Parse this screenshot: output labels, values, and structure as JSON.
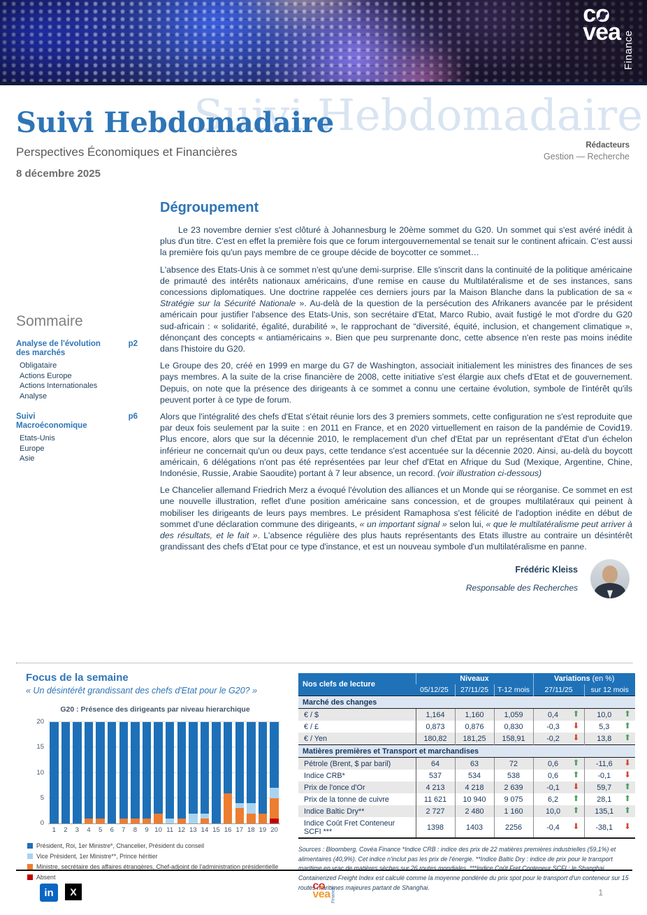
{
  "banner": {
    "logo": {
      "l1_pre": "c",
      "l1_o": "o",
      "l2": "vea",
      "vertical": "Finance"
    }
  },
  "masthead": {
    "watermark": "Suivi Hebdomadaire",
    "title": "Suivi Hebdomadaire",
    "subtitle": "Perspectives Économiques et Financières",
    "date": "8 décembre 2025",
    "editors_label": "Rédacteurs",
    "editors_value": "Gestion — Recherche"
  },
  "sommaire": {
    "title": "Sommaire",
    "sections": [
      {
        "label": "Analyse de l'évolution des marchés",
        "page": "p2",
        "items": [
          "Obligataire",
          "Actions Europe",
          "Actions Internationales",
          "Analyse"
        ]
      },
      {
        "label": "Suivi Macroéconomique",
        "page": "p6",
        "items": [
          "Etats-Unis",
          "Europe",
          "Asie"
        ]
      }
    ]
  },
  "article": {
    "title": "Dégroupement",
    "paragraphs": [
      [
        {
          "t": "Le 23 novembre dernier s'est clôturé à Johannesburg le 20ème sommet du G20. Un sommet qui s'est avéré inédit à plus d'un titre. C'est en effet la première fois que ce forum intergouvernemental se tenait sur le continent africain. C'est aussi la première fois qu'un pays membre de ce groupe décide de boycotter ce sommet…"
        }
      ],
      [
        {
          "t": "L'absence des Etats-Unis à ce sommet n'est qu'une demi-surprise. Elle s'inscrit dans la continuité de la politique américaine de primauté des intérêts nationaux américains, d'une remise en cause du Multilatéralisme et de ses instances, sans concessions diplomatiques. Une doctrine rappelée ces derniers jours par la Maison Blanche dans la publication de sa « "
        },
        {
          "t": "Stratégie sur la Sécurité Nationale",
          "i": true
        },
        {
          "t": " ». Au-delà de la question de la persécution des Afrikaners avancée par le président américain pour justifier l'absence des Etats-Unis, son secrétaire d'Etat, Marco Rubio, avait fustigé le mot d'ordre du G20 sud-africain : « solidarité, égalité, durabilité », le rapprochant de “diversité, équité, inclusion, et changement climatique », dénonçant des concepts « antiaméricains ». Bien que peu surprenante donc, cette absence n'en reste pas moins inédite dans l'histoire du G20."
        }
      ],
      [
        {
          "t": "Le Groupe des 20, créé en 1999 en marge du G7 de Washington, associait initialement les ministres des finances de ses pays membres. A la suite de la crise financière de 2008, cette initiative s'est élargie aux chefs d'Etat et de gouvernement. Depuis, on note que la présence des dirigeants à ce sommet a connu une certaine évolution, symbole de l'intérêt qu'ils peuvent porter à ce type de forum."
        }
      ],
      [
        {
          "t": "Alors que l'intégralité des chefs d'Etat s'était réunie lors des 3 premiers sommets, cette configuration ne s'est reproduite que par deux fois seulement par la suite : en 2011 en France, et en 2020 virtuellement en raison de la pandémie de Covid19. Plus encore, alors que sur la décennie 2010, le remplacement d'un chef d'Etat par un représentant d'Etat d'un échelon inférieur ne concernait qu'un ou deux pays, cette tendance s'est accentuée sur la décennie 2020. Ainsi, au-delà du boycott américain, 6 délégations n'ont pas été représentées par leur chef d'Etat en Afrique du Sud (Mexique, Argentine, Chine, Indonésie, Russie, Arabie Saoudite) portant à 7 leur absence, un record. "
        },
        {
          "t": "(voir illustration ci-dessous)",
          "i": true
        }
      ],
      [
        {
          "t": "Le Chancelier allemand Friedrich Merz a évoqué l'évolution des alliances et un Monde qui se réorganise. Ce sommet en est une nouvelle illustration, reflet d'une position américaine sans concession, et de groupes multilatéraux qui peinent à mobiliser les dirigeants de leurs pays membres. Le président Ramaphosa s'est félicité de l'adoption inédite en début de sommet d'une déclaration commune des dirigeants, "
        },
        {
          "t": "« un important signal »",
          "i": true
        },
        {
          "t": " selon lui, "
        },
        {
          "t": "« que le multilatéralisme peut arriver à des résultats, et le fait »",
          "i": true
        },
        {
          "t": ". L'absence régulière des plus hauts représentants des Etats illustre au contraire un désintérêt grandissant des chefs d'Etat pour ce type d'instance, et est un nouveau symbole d'un multilatéralisme en panne."
        }
      ]
    ],
    "author": "Frédéric Kleiss",
    "author_role": "Responsable des Recherches"
  },
  "focus": {
    "title": "Focus de la semaine",
    "subtitle": "« Un désintérêt grandissant des chefs d'Etat pour le G20?  »"
  },
  "chart_data": {
    "type": "bar",
    "stacked": true,
    "title": "G20 : Présence des dirigeants par niveau hierarchique",
    "categories": [
      1,
      2,
      3,
      4,
      5,
      6,
      7,
      8,
      9,
      10,
      11,
      12,
      13,
      14,
      15,
      16,
      17,
      18,
      19,
      20
    ],
    "series": [
      {
        "name": "Président, Roi, 1er Ministre*, Chancelier, Président du conseil",
        "color": "#1d70b8",
        "values": [
          20,
          20,
          20,
          19,
          19,
          20,
          19,
          19,
          19,
          18,
          19,
          19,
          18,
          18,
          20,
          14,
          16,
          16,
          18,
          13
        ]
      },
      {
        "name": "Vice Président, 1er Ministre**, Prince héritier",
        "color": "#a9d3ef",
        "values": [
          0,
          0,
          0,
          0,
          0,
          0,
          0,
          0,
          0,
          0,
          1,
          0,
          2,
          1,
          0,
          0,
          1,
          2,
          0,
          2
        ]
      },
      {
        "name": "Ministre, secrétaire des affaires étrangères, Chef-adjoint de l'administration présidentielle",
        "color": "#ed7d31",
        "values": [
          0,
          0,
          0,
          1,
          1,
          0,
          1,
          1,
          1,
          2,
          0,
          1,
          0,
          1,
          0,
          6,
          3,
          2,
          2,
          4
        ]
      },
      {
        "name": "Absent",
        "color": "#c00000",
        "values": [
          0,
          0,
          0,
          0,
          0,
          0,
          0,
          0,
          0,
          0,
          0,
          0,
          0,
          0,
          0,
          0,
          0,
          0,
          0,
          1
        ]
      }
    ],
    "ylim": [
      0,
      20
    ],
    "yticks": [
      0,
      5,
      10,
      15,
      20
    ],
    "grid": true,
    "legend_position": "bottom"
  },
  "table": {
    "title": "Nos clefs de lecture",
    "group1": "Niveaux",
    "group2_bold": "Variations",
    "group2_normal": " (en %)",
    "columns": [
      "05/12/25",
      "27/11/25",
      "T-12 mois",
      "27/11/25",
      "sur 12 mois"
    ],
    "up_glyph": "⬆",
    "down_glyph": "⬇",
    "up_color": "#4e9e5f",
    "down_color": "#cf4631",
    "rows": [
      {
        "type": "section",
        "label": "Marché des changes"
      },
      {
        "type": "data",
        "label": "€ / $",
        "values": [
          "1,164",
          "1,160",
          "1,059"
        ],
        "variations": [
          {
            "value": "0,4",
            "dir": "up"
          },
          {
            "value": "10,0",
            "dir": "up"
          }
        ]
      },
      {
        "type": "data",
        "label": "€ / £",
        "values": [
          "0,873",
          "0,876",
          "0,830"
        ],
        "variations": [
          {
            "value": "-0,3",
            "dir": "down"
          },
          {
            "value": "5,3",
            "dir": "up"
          }
        ]
      },
      {
        "type": "data",
        "label": "€ / Yen",
        "values": [
          "180,82",
          "181,25",
          "158,91"
        ],
        "variations": [
          {
            "value": "-0,2",
            "dir": "down"
          },
          {
            "value": "13,8",
            "dir": "up"
          }
        ]
      },
      {
        "type": "section",
        "label": "Matières premières et Transport et marchandises"
      },
      {
        "type": "data",
        "label": "Pétrole (Brent, $ par baril)",
        "values": [
          "64",
          "63",
          "72"
        ],
        "variations": [
          {
            "value": "0,6",
            "dir": "up"
          },
          {
            "value": "-11,6",
            "dir": "down"
          }
        ]
      },
      {
        "type": "data",
        "label": "Indice CRB*",
        "values": [
          "537",
          "534",
          "538"
        ],
        "variations": [
          {
            "value": "0,6",
            "dir": "up"
          },
          {
            "value": "-0,1",
            "dir": "down"
          }
        ]
      },
      {
        "type": "data",
        "label": "Prix de l'once d'Or",
        "values": [
          "4 213",
          "4 218",
          "2 639"
        ],
        "variations": [
          {
            "value": "-0,1",
            "dir": "down"
          },
          {
            "value": "59,7",
            "dir": "up"
          }
        ]
      },
      {
        "type": "data",
        "label": "Prix de la tonne de cuivre",
        "values": [
          "11 621",
          "10 940",
          "9 075"
        ],
        "variations": [
          {
            "value": "6,2",
            "dir": "up"
          },
          {
            "value": "28,1",
            "dir": "up"
          }
        ]
      },
      {
        "type": "data",
        "label": "Indice Baltic Dry**",
        "values": [
          "2 727",
          "2 480",
          "1 160"
        ],
        "variations": [
          {
            "value": "10,0",
            "dir": "up"
          },
          {
            "value": "135,1",
            "dir": "up"
          }
        ]
      },
      {
        "type": "data",
        "label": "Indice Coût Fret Conteneur SCFI ***",
        "values": [
          "1398",
          "1403",
          "2256"
        ],
        "variations": [
          {
            "value": "-0,4",
            "dir": "down"
          },
          {
            "value": "-38,1",
            "dir": "down"
          }
        ]
      }
    ],
    "sources": "Sources : Bloomberg, Covéa Finance  *Indice CRB : indice  des prix de 22 matières premières industrielles (59,1%) et alimentaires (40,9%). Cet indice n'inclut pas les prix de l'énergie. **Indice Baltic Dry : indice de prix pour le transport maritime en vrac de matières sèches sur 26 routes mondiales. ***Indice Coût Fret Conteneur SCFI : le Shanghai Containerized Freight Index est calculé comme la moyenne pondérée du prix spot pour le transport d'un conteneur sur 15 routes maritimes majeures partant de Shanghai."
  },
  "footer": {
    "linkedin_glyph": "in",
    "x_glyph": "X",
    "page": "1"
  }
}
